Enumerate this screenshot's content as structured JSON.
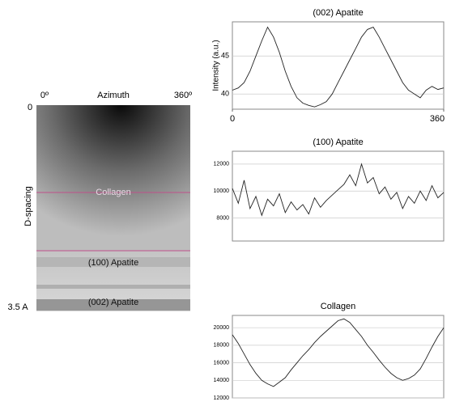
{
  "image": {
    "x_start": "0º",
    "x_label": "Azimuth",
    "x_end": "360º",
    "y_start": "0",
    "y_label": "D-spacing",
    "y_end": "3.5 A",
    "regions": [
      "Collagen",
      "(100) Apatite",
      "(002) Apatite"
    ]
  },
  "chart_data": [
    {
      "type": "line",
      "title": "(002) Apatite",
      "y_label": "Intensity (a.u.)",
      "color": "#222222",
      "grid": true,
      "x": [
        0,
        10,
        20,
        30,
        40,
        50,
        60,
        70,
        80,
        90,
        100,
        110,
        120,
        130,
        140,
        150,
        160,
        170,
        180,
        190,
        200,
        210,
        220,
        230,
        240,
        250,
        260,
        270,
        280,
        290,
        300,
        310,
        320,
        330,
        340,
        350,
        360
      ],
      "values": [
        40.5,
        40.8,
        41.5,
        43,
        45,
        47,
        48.8,
        47.5,
        45.5,
        43,
        41,
        39.5,
        38.8,
        38.5,
        38.3,
        38.6,
        39,
        40,
        41.5,
        43,
        44.5,
        46,
        47.5,
        48.5,
        48.8,
        47.5,
        46,
        44.5,
        43,
        41.5,
        40.5,
        40,
        39.5,
        40.5,
        41,
        40.6,
        40.8
      ],
      "xlim": [
        0,
        360
      ],
      "xticks": [
        0,
        360
      ],
      "ylim": [
        38,
        49.5
      ],
      "yticks": [
        40,
        45
      ]
    },
    {
      "type": "line",
      "title": "(100) Apatite",
      "color": "#222222",
      "grid": true,
      "x": [
        0,
        10,
        20,
        30,
        40,
        50,
        60,
        70,
        80,
        90,
        100,
        110,
        120,
        130,
        140,
        150,
        160,
        170,
        180,
        190,
        200,
        210,
        220,
        230,
        240,
        250,
        260,
        270,
        280,
        290,
        300,
        310,
        320,
        330,
        340,
        350,
        360
      ],
      "values": [
        10200,
        9100,
        10800,
        8700,
        9600,
        8200,
        9400,
        8900,
        9800,
        8400,
        9200,
        8600,
        9000,
        8300,
        9500,
        8800,
        9300,
        9700,
        10100,
        10500,
        11200,
        10400,
        12000,
        10600,
        11000,
        9800,
        10300,
        9400,
        9900,
        8700,
        9600,
        9100,
        10000,
        9300,
        10400,
        9500,
        9900
      ],
      "xlim": [
        0,
        360
      ],
      "ylim": [
        6300,
        12950
      ],
      "yticks": [
        8000,
        10000,
        12000
      ]
    },
    {
      "type": "line",
      "title": "Collagen",
      "color": "#222222",
      "grid": true,
      "x": [
        0,
        10,
        20,
        30,
        40,
        50,
        60,
        70,
        80,
        90,
        100,
        110,
        120,
        130,
        140,
        150,
        160,
        170,
        180,
        190,
        200,
        210,
        220,
        230,
        240,
        250,
        260,
        270,
        280,
        290,
        300,
        310,
        320,
        330,
        340,
        350,
        360
      ],
      "values": [
        19200,
        18200,
        17000,
        15800,
        14800,
        14000,
        13600,
        13300,
        13800,
        14300,
        15200,
        16000,
        16800,
        17500,
        18300,
        19000,
        19600,
        20200,
        20800,
        21000,
        20600,
        19800,
        19000,
        18000,
        17200,
        16300,
        15500,
        14800,
        14300,
        14000,
        14200,
        14600,
        15300,
        16500,
        17800,
        19000,
        20000
      ],
      "xlim": [
        0,
        360
      ],
      "ylim": [
        12000,
        21400
      ],
      "yticks": [
        12000,
        14000,
        16000,
        18000,
        20000
      ]
    }
  ]
}
